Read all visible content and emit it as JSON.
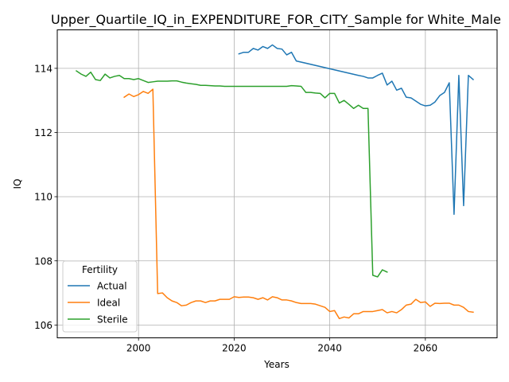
{
  "chart_data": {
    "type": "line",
    "title": "Upper_Quartile_IQ_in_EXPENDITURE_FOR_CITY_Sample for White_Male",
    "xlabel": "Years",
    "ylabel": "IQ",
    "xlim": [
      1983,
      2075
    ],
    "ylim": [
      105.6,
      115.2
    ],
    "xticks": [
      2000,
      2020,
      2040,
      2060
    ],
    "yticks": [
      106,
      108,
      110,
      112,
      114
    ],
    "xtick_labels": [
      "2000",
      "2020",
      "2040",
      "2060"
    ],
    "ytick_labels": [
      "106",
      "108",
      "110",
      "112",
      "114"
    ],
    "grid": true,
    "legend": {
      "title": "Fertility",
      "placement": "lower-left"
    },
    "series": [
      {
        "name": "Actual",
        "color": "#1f77b4",
        "x": [
          2021,
          2022,
          2023,
          2024,
          2025,
          2026,
          2027,
          2028,
          2029,
          2030,
          2031,
          2032,
          2033,
          2046,
          2047,
          2048,
          2049,
          2050,
          2051,
          2052,
          2053,
          2054,
          2055,
          2056,
          2057,
          2058,
          2059,
          2060,
          2061,
          2062,
          2063,
          2064,
          2065,
          2066,
          2067,
          2068,
          2069,
          2070
        ],
        "y": [
          114.45,
          114.5,
          114.5,
          114.62,
          114.57,
          114.68,
          114.62,
          114.73,
          114.62,
          114.6,
          114.42,
          114.5,
          114.23,
          113.78,
          113.75,
          113.7,
          113.7,
          113.78,
          113.85,
          113.48,
          113.6,
          113.32,
          113.38,
          113.1,
          113.08,
          112.98,
          112.88,
          112.83,
          112.85,
          112.95,
          113.15,
          113.25,
          113.55,
          109.45,
          113.78,
          109.72,
          113.78,
          113.65
        ]
      },
      {
        "name": "Ideal",
        "color": "#ff7f0e",
        "x": [
          1997,
          1998,
          1999,
          2000,
          2001,
          2002,
          2003,
          2004,
          2005,
          2006,
          2007,
          2008,
          2009,
          2010,
          2011,
          2012,
          2013,
          2014,
          2015,
          2016,
          2017,
          2018,
          2019,
          2020,
          2021,
          2022,
          2023,
          2024,
          2025,
          2026,
          2027,
          2028,
          2029,
          2030,
          2031,
          2032,
          2033,
          2034,
          2035,
          2036,
          2037,
          2038,
          2039,
          2040,
          2041,
          2042,
          2043,
          2044,
          2045,
          2046,
          2047,
          2048,
          2049,
          2050,
          2051,
          2052,
          2053,
          2054,
          2055,
          2056,
          2057,
          2058,
          2059,
          2060,
          2061,
          2062,
          2063,
          2064,
          2065,
          2066,
          2067,
          2068,
          2069,
          2070
        ],
        "y": [
          113.1,
          113.2,
          113.12,
          113.18,
          113.28,
          113.22,
          113.35,
          106.98,
          107.0,
          106.85,
          106.75,
          106.7,
          106.6,
          106.62,
          106.7,
          106.75,
          106.75,
          106.7,
          106.75,
          106.75,
          106.8,
          106.8,
          106.8,
          106.88,
          106.86,
          106.87,
          106.87,
          106.85,
          106.8,
          106.85,
          106.78,
          106.88,
          106.85,
          106.78,
          106.78,
          106.75,
          106.7,
          106.67,
          106.67,
          106.67,
          106.65,
          106.6,
          106.55,
          106.42,
          106.45,
          106.2,
          106.25,
          106.22,
          106.35,
          106.35,
          106.42,
          106.42,
          106.42,
          106.45,
          106.48,
          106.38,
          106.42,
          106.38,
          106.48,
          106.62,
          106.65,
          106.8,
          106.7,
          106.72,
          106.58,
          106.68,
          106.67,
          106.68,
          106.68,
          106.62,
          106.62,
          106.55,
          106.42,
          106.4
        ]
      },
      {
        "name": "Sterile",
        "color": "#2ca02c",
        "x": [
          1987,
          1988,
          1989,
          1990,
          1991,
          1992,
          1993,
          1994,
          1995,
          1996,
          1997,
          1998,
          1999,
          2000,
          2001,
          2002,
          2003,
          2004,
          2005,
          2006,
          2007,
          2008,
          2009,
          2010,
          2011,
          2012,
          2013,
          2014,
          2015,
          2016,
          2017,
          2018,
          2019,
          2020,
          2021,
          2022,
          2023,
          2024,
          2025,
          2026,
          2027,
          2028,
          2029,
          2030,
          2031,
          2032,
          2033,
          2034,
          2035,
          2036,
          2037,
          2038,
          2039,
          2040,
          2041,
          2042,
          2043,
          2044,
          2045,
          2046,
          2047,
          2048,
          2049,
          2050,
          2051,
          2052
        ],
        "y": [
          113.92,
          113.82,
          113.75,
          113.88,
          113.65,
          113.62,
          113.82,
          113.7,
          113.75,
          113.78,
          113.68,
          113.68,
          113.65,
          113.68,
          113.62,
          113.56,
          113.58,
          113.6,
          113.6,
          113.6,
          113.61,
          113.61,
          113.57,
          113.54,
          113.52,
          113.5,
          113.47,
          113.47,
          113.46,
          113.45,
          113.45,
          113.44,
          113.44,
          113.44,
          113.44,
          113.44,
          113.44,
          113.44,
          113.44,
          113.44,
          113.44,
          113.44,
          113.44,
          113.44,
          113.44,
          113.46,
          113.45,
          113.44,
          113.25,
          113.25,
          113.23,
          113.22,
          113.08,
          113.22,
          113.22,
          112.92,
          113.0,
          112.88,
          112.75,
          112.85,
          112.75,
          112.75,
          107.55,
          107.5,
          107.72,
          107.65
        ]
      }
    ]
  }
}
